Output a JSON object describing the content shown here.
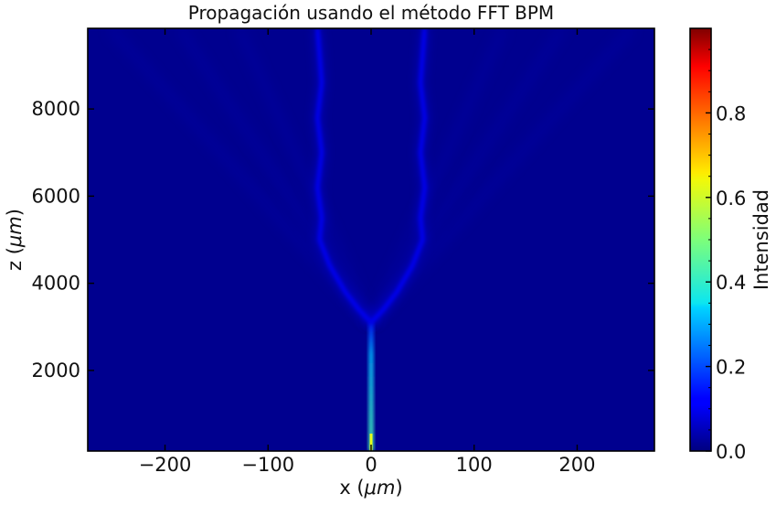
{
  "chart_data": {
    "type": "heatmap",
    "title": "Propagación usando el método FFT BPM",
    "xlabel_prefix": "x (",
    "xlabel_unit": "μm",
    "xlabel_suffix": ")",
    "ylabel_prefix": "z (",
    "ylabel_unit": "μm",
    "ylabel_suffix": ")",
    "xlim": [
      -275,
      275
    ],
    "ylim": [
      150,
      9850
    ],
    "xticks": [
      -200,
      -100,
      0,
      100,
      200
    ],
    "xtick_labels": [
      "−200",
      "−100",
      "0",
      "100",
      "200"
    ],
    "yticks": [
      2000,
      4000,
      6000,
      8000
    ],
    "ytick_labels": [
      "2000",
      "4000",
      "6000",
      "8000"
    ],
    "colormap": "jet",
    "colorbar": {
      "label": "Intensidad",
      "range": [
        0,
        1
      ],
      "ticks": [
        0,
        0.2,
        0.4,
        0.6,
        0.8
      ],
      "tick_labels": [
        "0.0",
        "0.2",
        "0.4",
        "0.6",
        "0.8"
      ]
    },
    "features": {
      "input_waveguide": {
        "x": 0,
        "z_start": 150,
        "z_end": 3100,
        "intensity_start": 0.45,
        "intensity_end": 0.15
      },
      "split_point_z": 3100,
      "branches": [
        {
          "name": "left",
          "path": [
            [
              0,
              3100
            ],
            [
              -12,
              3400
            ],
            [
              -25,
              3800
            ],
            [
              -40,
              4400
            ],
            [
              -50,
              5000
            ],
            [
              -48,
              5500
            ],
            [
              -52,
              6200
            ],
            [
              -48,
              7000
            ],
            [
              -52,
              7800
            ],
            [
              -48,
              8600
            ],
            [
              -52,
              9850
            ]
          ],
          "intensity": 0.12
        },
        {
          "name": "right",
          "path": [
            [
              0,
              3100
            ],
            [
              12,
              3400
            ],
            [
              25,
              3800
            ],
            [
              40,
              4400
            ],
            [
              50,
              5000
            ],
            [
              48,
              5500
            ],
            [
              52,
              6200
            ],
            [
              48,
              7000
            ],
            [
              52,
              7800
            ],
            [
              48,
              8600
            ],
            [
              52,
              9850
            ]
          ],
          "intensity": 0.12
        }
      ],
      "background_intensity": 0.0
    }
  },
  "colors": {
    "background_min": "#00008f",
    "axis": "#000000"
  }
}
